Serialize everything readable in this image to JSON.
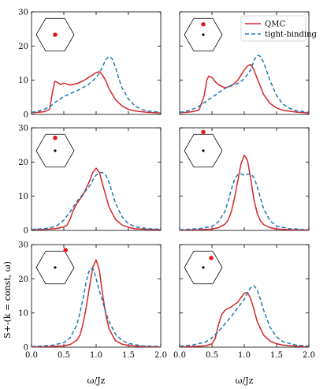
{
  "figure": {
    "ylabel": "S+-(k = const, ω)",
    "xlabel": "ω/Jz"
  },
  "legend": {
    "placement": "top-right of top-right panel",
    "entries": [
      {
        "label": "QMC",
        "color": "#d62728",
        "style": "solid"
      },
      {
        "label": "tight-binding",
        "color": "#1f77b4",
        "style": "dashed"
      }
    ]
  },
  "chart_data": [
    {
      "type": "line",
      "panel": "top-left",
      "xlim": [
        0,
        2
      ],
      "ylim": [
        0,
        30
      ],
      "xticks": [
        "0.0",
        "0.5",
        "1.0",
        "1.5",
        "2.0"
      ],
      "yticks": [
        "0",
        "10",
        "20",
        "30"
      ],
      "inset_k": {
        "dot_at": "center (Γ point)",
        "show_center_dot": false
      },
      "series": [
        {
          "name": "QMC",
          "color": "#d62728",
          "dash": "solid",
          "x": [
            0,
            0.1,
            0.2,
            0.28,
            0.32,
            0.36,
            0.4,
            0.45,
            0.5,
            0.55,
            0.6,
            0.7,
            0.8,
            0.9,
            1.0,
            1.05,
            1.1,
            1.15,
            1.2,
            1.3,
            1.4,
            1.5,
            1.6,
            1.7,
            1.8,
            2.0
          ],
          "y": [
            0.5,
            0.6,
            0.8,
            1.5,
            6.0,
            9.7,
            9.4,
            8.7,
            9.2,
            8.8,
            8.6,
            9.0,
            9.8,
            11.0,
            12.2,
            12.5,
            11.5,
            9.8,
            7.5,
            4.3,
            2.5,
            1.5,
            1.0,
            0.8,
            0.6,
            0.4
          ]
        },
        {
          "name": "tight-binding",
          "color": "#1f77b4",
          "dash": "dashed",
          "x": [
            0,
            0.1,
            0.2,
            0.3,
            0.4,
            0.5,
            0.6,
            0.7,
            0.8,
            0.9,
            1.0,
            1.05,
            1.1,
            1.15,
            1.2,
            1.25,
            1.3,
            1.35,
            1.4,
            1.5,
            1.6,
            1.7,
            1.8,
            2.0
          ],
          "y": [
            0.6,
            0.9,
            1.5,
            2.5,
            4.0,
            5.2,
            6.1,
            6.9,
            7.9,
            9.0,
            10.8,
            12.0,
            14.0,
            16.0,
            17.0,
            16.2,
            13.8,
            10.5,
            7.8,
            4.5,
            2.5,
            1.5,
            1.0,
            0.6
          ]
        }
      ]
    },
    {
      "type": "line",
      "panel": "top-right",
      "xlim": [
        0,
        2
      ],
      "ylim": [
        0,
        30
      ],
      "xticks": [
        "0.0",
        "0.5",
        "1.0",
        "1.5",
        "2.0"
      ],
      "yticks": [],
      "inset_k": {
        "dot_at": "just above center",
        "show_center_dot": true
      },
      "series": [
        {
          "name": "QMC",
          "color": "#d62728",
          "dash": "solid",
          "x": [
            0,
            0.1,
            0.2,
            0.3,
            0.38,
            0.42,
            0.45,
            0.5,
            0.55,
            0.6,
            0.7,
            0.8,
            0.9,
            1.0,
            1.05,
            1.1,
            1.15,
            1.2,
            1.3,
            1.4,
            1.5,
            1.6,
            1.8,
            2.0
          ],
          "y": [
            0.5,
            0.6,
            0.8,
            1.3,
            5.5,
            10.0,
            11.2,
            10.8,
            9.6,
            8.7,
            7.8,
            8.3,
            10.0,
            13.0,
            14.2,
            14.6,
            13.0,
            10.5,
            5.8,
            3.2,
            1.9,
            1.2,
            0.7,
            0.4
          ]
        },
        {
          "name": "tight-binding",
          "color": "#1f77b4",
          "dash": "dashed",
          "x": [
            0,
            0.1,
            0.2,
            0.3,
            0.4,
            0.5,
            0.6,
            0.7,
            0.8,
            0.9,
            1.0,
            1.1,
            1.15,
            1.2,
            1.25,
            1.3,
            1.35,
            1.4,
            1.5,
            1.6,
            1.7,
            1.8,
            2.0
          ],
          "y": [
            0.6,
            0.9,
            1.5,
            2.4,
            3.7,
            5.0,
            6.3,
            7.6,
            8.5,
            9.0,
            10.4,
            13.0,
            15.8,
            17.3,
            17.0,
            15.2,
            12.5,
            9.8,
            5.5,
            3.0,
            1.8,
            1.1,
            0.6
          ]
        }
      ]
    },
    {
      "type": "line",
      "panel": "middle-left",
      "xlim": [
        0,
        2
      ],
      "ylim": [
        0,
        30
      ],
      "xticks": [
        "0.0",
        "0.5",
        "1.0",
        "1.5",
        "2.0"
      ],
      "yticks": [
        "0",
        "10",
        "20",
        "30"
      ],
      "inset_k": {
        "dot_at": "above center",
        "show_center_dot": true
      },
      "series": [
        {
          "name": "QMC",
          "color": "#d62728",
          "dash": "solid",
          "x": [
            0,
            0.2,
            0.3,
            0.4,
            0.5,
            0.55,
            0.6,
            0.65,
            0.7,
            0.8,
            0.9,
            0.95,
            1.0,
            1.05,
            1.1,
            1.2,
            1.3,
            1.4,
            1.5,
            1.6,
            1.8,
            2.0
          ],
          "y": [
            0.2,
            0.3,
            0.4,
            0.6,
            1.0,
            1.5,
            3.5,
            6.0,
            7.8,
            10.5,
            14.5,
            17.0,
            18.2,
            17.0,
            13.5,
            6.8,
            3.2,
            1.6,
            0.9,
            0.5,
            0.3,
            0.2
          ]
        },
        {
          "name": "tight-binding",
          "color": "#1f77b4",
          "dash": "dashed",
          "x": [
            0,
            0.2,
            0.3,
            0.4,
            0.5,
            0.6,
            0.7,
            0.8,
            0.9,
            0.95,
            1.0,
            1.05,
            1.1,
            1.15,
            1.2,
            1.25,
            1.3,
            1.4,
            1.5,
            1.6,
            1.8,
            2.0
          ],
          "y": [
            0.3,
            0.5,
            0.8,
            1.5,
            3.0,
            5.5,
            8.4,
            10.7,
            13.0,
            14.8,
            16.2,
            16.9,
            16.9,
            16.2,
            14.0,
            11.0,
            8.0,
            4.0,
            2.0,
            1.1,
            0.5,
            0.3
          ]
        }
      ]
    },
    {
      "type": "line",
      "panel": "middle-right",
      "xlim": [
        0,
        2
      ],
      "ylim": [
        0,
        30
      ],
      "xticks": [
        "0.0",
        "0.5",
        "1.0",
        "1.5",
        "2.0"
      ],
      "yticks": [],
      "inset_k": {
        "dot_at": "top edge of hexagon",
        "show_center_dot": true
      },
      "series": [
        {
          "name": "QMC",
          "color": "#d62728",
          "dash": "solid",
          "x": [
            0,
            0.3,
            0.5,
            0.6,
            0.7,
            0.75,
            0.8,
            0.85,
            0.9,
            0.95,
            1.0,
            1.05,
            1.1,
            1.15,
            1.2,
            1.25,
            1.3,
            1.4,
            1.5,
            1.7,
            2.0
          ],
          "y": [
            0.1,
            0.2,
            0.4,
            0.8,
            1.8,
            3.0,
            5.5,
            9.5,
            14.5,
            19.5,
            22.0,
            20.5,
            15.0,
            9.0,
            5.0,
            2.8,
            1.7,
            0.8,
            0.4,
            0.2,
            0.1
          ]
        },
        {
          "name": "tight-binding",
          "color": "#1f77b4",
          "dash": "dashed",
          "x": [
            0,
            0.3,
            0.5,
            0.6,
            0.7,
            0.75,
            0.8,
            0.85,
            0.9,
            0.95,
            1.0,
            1.05,
            1.1,
            1.15,
            1.2,
            1.25,
            1.3,
            1.4,
            1.5,
            1.7,
            2.0
          ],
          "y": [
            0.2,
            0.5,
            1.2,
            2.5,
            5.5,
            8.5,
            12.0,
            15.0,
            16.3,
            16.5,
            16.1,
            16.5,
            16.5,
            15.5,
            12.8,
            9.5,
            6.3,
            2.8,
            1.3,
            0.5,
            0.2
          ]
        }
      ]
    },
    {
      "type": "line",
      "panel": "bottom-left",
      "xlim": [
        0,
        2
      ],
      "ylim": [
        0,
        30
      ],
      "xticks": [
        "0.0",
        "0.5",
        "1.0",
        "1.5",
        "2.0"
      ],
      "yticks": [
        "0",
        "10",
        "20",
        "30"
      ],
      "inset_k": {
        "dot_at": "top-right corner of hexagon",
        "show_center_dot": true
      },
      "series": [
        {
          "name": "QMC",
          "color": "#d62728",
          "dash": "solid",
          "x": [
            0,
            0.3,
            0.5,
            0.6,
            0.7,
            0.75,
            0.8,
            0.85,
            0.9,
            0.95,
            1.0,
            1.05,
            1.1,
            1.15,
            1.2,
            1.3,
            1.4,
            1.5,
            1.7,
            2.0
          ],
          "y": [
            0.1,
            0.2,
            0.4,
            0.8,
            2.0,
            3.5,
            7.0,
            12.0,
            18.0,
            23.5,
            25.5,
            22.5,
            15.5,
            9.5,
            5.3,
            1.9,
            0.9,
            0.5,
            0.2,
            0.1
          ]
        },
        {
          "name": "tight-binding",
          "color": "#1f77b4",
          "dash": "dashed",
          "x": [
            0,
            0.3,
            0.5,
            0.6,
            0.7,
            0.75,
            0.8,
            0.85,
            0.9,
            0.95,
            1.0,
            1.05,
            1.1,
            1.15,
            1.2,
            1.3,
            1.4,
            1.5,
            1.7,
            2.0
          ],
          "y": [
            0.2,
            0.5,
            1.3,
            2.8,
            6.5,
            10.0,
            14.5,
            19.5,
            22.8,
            23.0,
            20.0,
            16.5,
            13.5,
            10.0,
            7.5,
            3.8,
            2.0,
            1.1,
            0.4,
            0.2
          ]
        }
      ]
    },
    {
      "type": "line",
      "panel": "bottom-right",
      "xlim": [
        0,
        2
      ],
      "ylim": [
        0,
        30
      ],
      "xticks": [
        "0.0",
        "0.5",
        "1.0",
        "1.5",
        "2.0"
      ],
      "yticks": [],
      "inset_k": {
        "dot_at": "upper-right of center",
        "show_center_dot": true
      },
      "series": [
        {
          "name": "QMC",
          "color": "#d62728",
          "dash": "solid",
          "x": [
            0,
            0.2,
            0.4,
            0.5,
            0.55,
            0.6,
            0.65,
            0.7,
            0.8,
            0.9,
            0.95,
            1.0,
            1.05,
            1.1,
            1.15,
            1.2,
            1.3,
            1.4,
            1.5,
            1.6,
            1.8,
            2.0
          ],
          "y": [
            0.1,
            0.2,
            0.4,
            1.0,
            2.5,
            6.5,
            9.5,
            10.8,
            11.8,
            13.2,
            14.5,
            15.8,
            16.0,
            14.2,
            11.0,
            7.5,
            3.5,
            1.8,
            1.0,
            0.6,
            0.3,
            0.1
          ]
        },
        {
          "name": "tight-binding",
          "color": "#1f77b4",
          "dash": "dashed",
          "x": [
            0,
            0.2,
            0.4,
            0.5,
            0.6,
            0.7,
            0.8,
            0.9,
            1.0,
            1.05,
            1.1,
            1.15,
            1.2,
            1.25,
            1.3,
            1.4,
            1.5,
            1.6,
            1.8,
            2.0
          ],
          "y": [
            0.3,
            0.6,
            1.5,
            2.8,
            4.6,
            6.8,
            9.0,
            11.5,
            14.0,
            15.8,
            17.5,
            18.0,
            16.8,
            14.0,
            10.8,
            5.8,
            3.0,
            1.6,
            0.6,
            0.3
          ]
        }
      ]
    }
  ]
}
